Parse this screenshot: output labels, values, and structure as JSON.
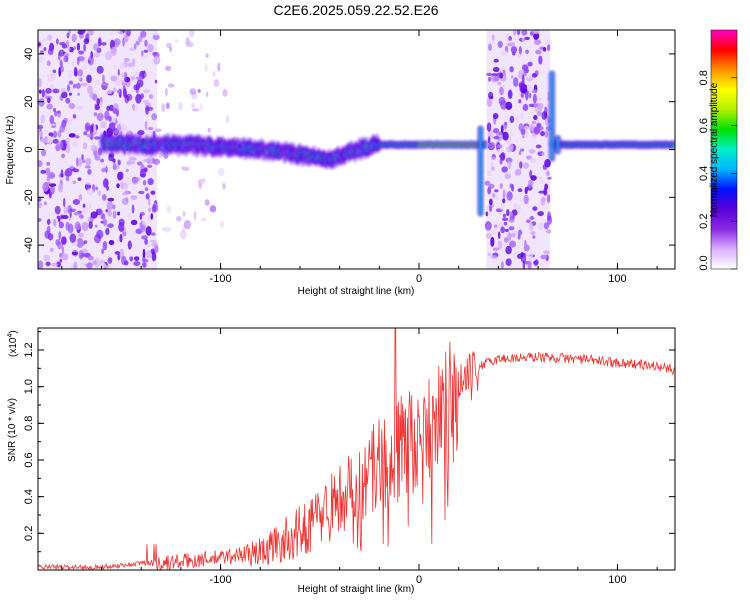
{
  "title": "C2E6.2025.059.22.52.E26",
  "chart_data": [
    {
      "type": "heatmap",
      "xlabel": "Height of straight line (km)",
      "ylabel": "Frequency (Hz)",
      "xlim": [
        -192,
        129
      ],
      "ylim": [
        -50,
        50
      ],
      "x_ticks": [
        -100,
        0,
        100
      ],
      "y_ticks": [
        -40,
        -20,
        0,
        20,
        40
      ],
      "colorbar": {
        "label": "Normalized spectral amplitude",
        "range": [
          0,
          1
        ],
        "ticks": [
          0,
          0.2,
          0.4,
          0.6,
          0.8
        ],
        "tick_labels": [
          "0.0",
          "0.2",
          "0.4",
          "0.6",
          "0.8"
        ],
        "colors": [
          "#ffffff",
          "#d9b0ff",
          "#8a2be2",
          "#5a00d8",
          "#0010ff",
          "#00b4ff",
          "#00f0c8",
          "#00e000",
          "#b4f000",
          "#ffff00",
          "#ff9000",
          "#ff0000",
          "#ff00c8"
        ]
      },
      "signal_track": [
        {
          "x": -160,
          "y": 3
        },
        {
          "x": -140,
          "y": 2
        },
        {
          "x": -120,
          "y": 2
        },
        {
          "x": -100,
          "y": 1
        },
        {
          "x": -80,
          "y": 0
        },
        {
          "x": -60,
          "y": -2
        },
        {
          "x": -45,
          "y": -4
        },
        {
          "x": -30,
          "y": 0
        },
        {
          "x": -20,
          "y": 2
        },
        {
          "x": 0,
          "y": 2
        },
        {
          "x": 28,
          "y": 2
        },
        {
          "x": 70,
          "y": 2
        },
        {
          "x": 129,
          "y": 2
        }
      ],
      "noise_regions": [
        {
          "x0": -192,
          "x1": -132,
          "level": "high"
        },
        {
          "x0": -132,
          "x1": -95,
          "level": "low"
        },
        {
          "x0": 34,
          "x1": 66,
          "level": "high"
        }
      ],
      "spikes": [
        {
          "x": 31,
          "y0": -28,
          "y1": 10
        },
        {
          "x": 67,
          "y0": -5,
          "y1": 33
        },
        {
          "x": 70,
          "y0": -2,
          "y1": 6
        }
      ]
    },
    {
      "type": "line",
      "xlabel": "Height of straight line (km)",
      "ylabel": "SNR (10 * v/v)",
      "y_scale_label": "(x10",
      "y_scale_exp": "4",
      "y_scale_close": ")",
      "xlim": [
        -192,
        129
      ],
      "ylim": [
        0,
        1.32
      ],
      "x_ticks": [
        -100,
        0,
        100
      ],
      "y_ticks": [
        0.2,
        0.4,
        0.6,
        0.8,
        1.0,
        1.2
      ],
      "y_tick_labels": [
        "0.2",
        "0.4",
        "0.6",
        "0.8",
        "1.0",
        "1.2"
      ],
      "series": [
        {
          "color": "#ee3333",
          "envelope": [
            {
              "x": -192,
              "y": 0.02
            },
            {
              "x": -160,
              "y": 0.02
            },
            {
              "x": -140,
              "y": 0.04
            },
            {
              "x": -120,
              "y": 0.06
            },
            {
              "x": -100,
              "y": 0.08
            },
            {
              "x": -80,
              "y": 0.12
            },
            {
              "x": -60,
              "y": 0.25
            },
            {
              "x": -50,
              "y": 0.35
            },
            {
              "x": -40,
              "y": 0.45
            },
            {
              "x": -30,
              "y": 0.55
            },
            {
              "x": -20,
              "y": 0.65
            },
            {
              "x": -10,
              "y": 0.75
            },
            {
              "x": 0,
              "y": 0.85
            },
            {
              "x": 10,
              "y": 0.95
            },
            {
              "x": 20,
              "y": 1.05
            },
            {
              "x": 30,
              "y": 1.12
            },
            {
              "x": 40,
              "y": 1.16
            },
            {
              "x": 60,
              "y": 1.17
            },
            {
              "x": 80,
              "y": 1.16
            },
            {
              "x": 100,
              "y": 1.14
            },
            {
              "x": 120,
              "y": 1.12
            },
            {
              "x": 129,
              "y": 1.1
            }
          ],
          "peak": {
            "x": -12,
            "y": 1.32
          }
        }
      ]
    }
  ]
}
